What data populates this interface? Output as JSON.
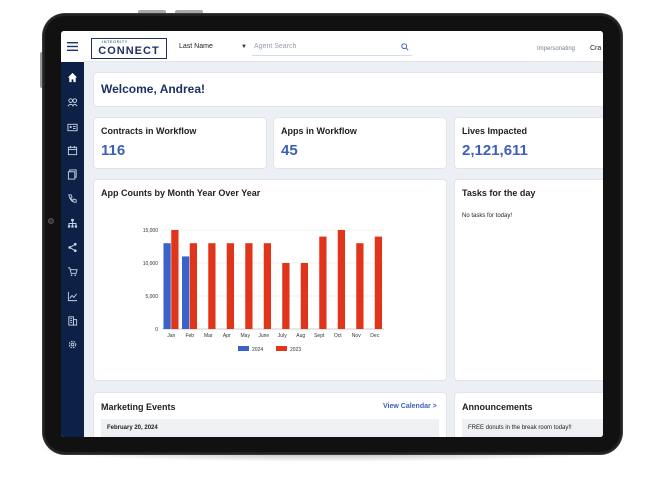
{
  "topbar": {
    "logo_small": "INTEGRITY",
    "logo_big": "CONNECT",
    "search_type": "Last Name",
    "search_placeholder": "Agent Search",
    "impersonating": "Impersonating",
    "user_trunc": "Cra"
  },
  "welcome": "Welcome, Andrea!",
  "stats": [
    {
      "label": "Contracts in Workflow",
      "value": "116"
    },
    {
      "label": "Apps in Workflow",
      "value": "45"
    },
    {
      "label": "Lives Impacted",
      "value": "2,121,611"
    }
  ],
  "chart_panel": {
    "title": "App Counts by Month Year Over Year"
  },
  "tasks": {
    "title": "Tasks for the day",
    "empty": "No tasks for today!"
  },
  "marketing": {
    "title": "Marketing Events",
    "link": "View Calendar >",
    "date": "February 20, 2024"
  },
  "announcements": {
    "title": "Announcements",
    "item": "FREE donuts in the break room today!!"
  },
  "colors": {
    "sidebar": "#0d2147",
    "accent": "#3e60b8",
    "series_2024": "#3a63c9",
    "series_2023": "#e0351b"
  },
  "sidebar_icons": [
    "home-icon",
    "users-icon",
    "id-card-icon",
    "calendar-icon",
    "documents-icon",
    "phone-icon",
    "org-chart-icon",
    "share-icon",
    "cart-icon",
    "line-chart-icon",
    "building-icon",
    "settings-icon"
  ],
  "chart_data": {
    "type": "bar",
    "categories": [
      "Jan",
      "Feb",
      "Mar",
      "Apr",
      "May",
      "June",
      "July",
      "Aug",
      "Sept",
      "Oct",
      "Nov",
      "Dec"
    ],
    "series": [
      {
        "name": "2024",
        "color": "#3a63c9",
        "values": [
          13000,
          11000,
          null,
          null,
          null,
          null,
          null,
          null,
          null,
          null,
          null,
          null
        ]
      },
      {
        "name": "2023",
        "color": "#e0351b",
        "values": [
          15000,
          13000,
          13000,
          13000,
          13000,
          13000,
          10000,
          10000,
          14000,
          15000,
          13000,
          14000
        ]
      }
    ],
    "yticks": [
      "15,000",
      "10,000",
      "5,000",
      "0"
    ],
    "ylim": [
      0,
      15000
    ],
    "legend": "bottom"
  }
}
